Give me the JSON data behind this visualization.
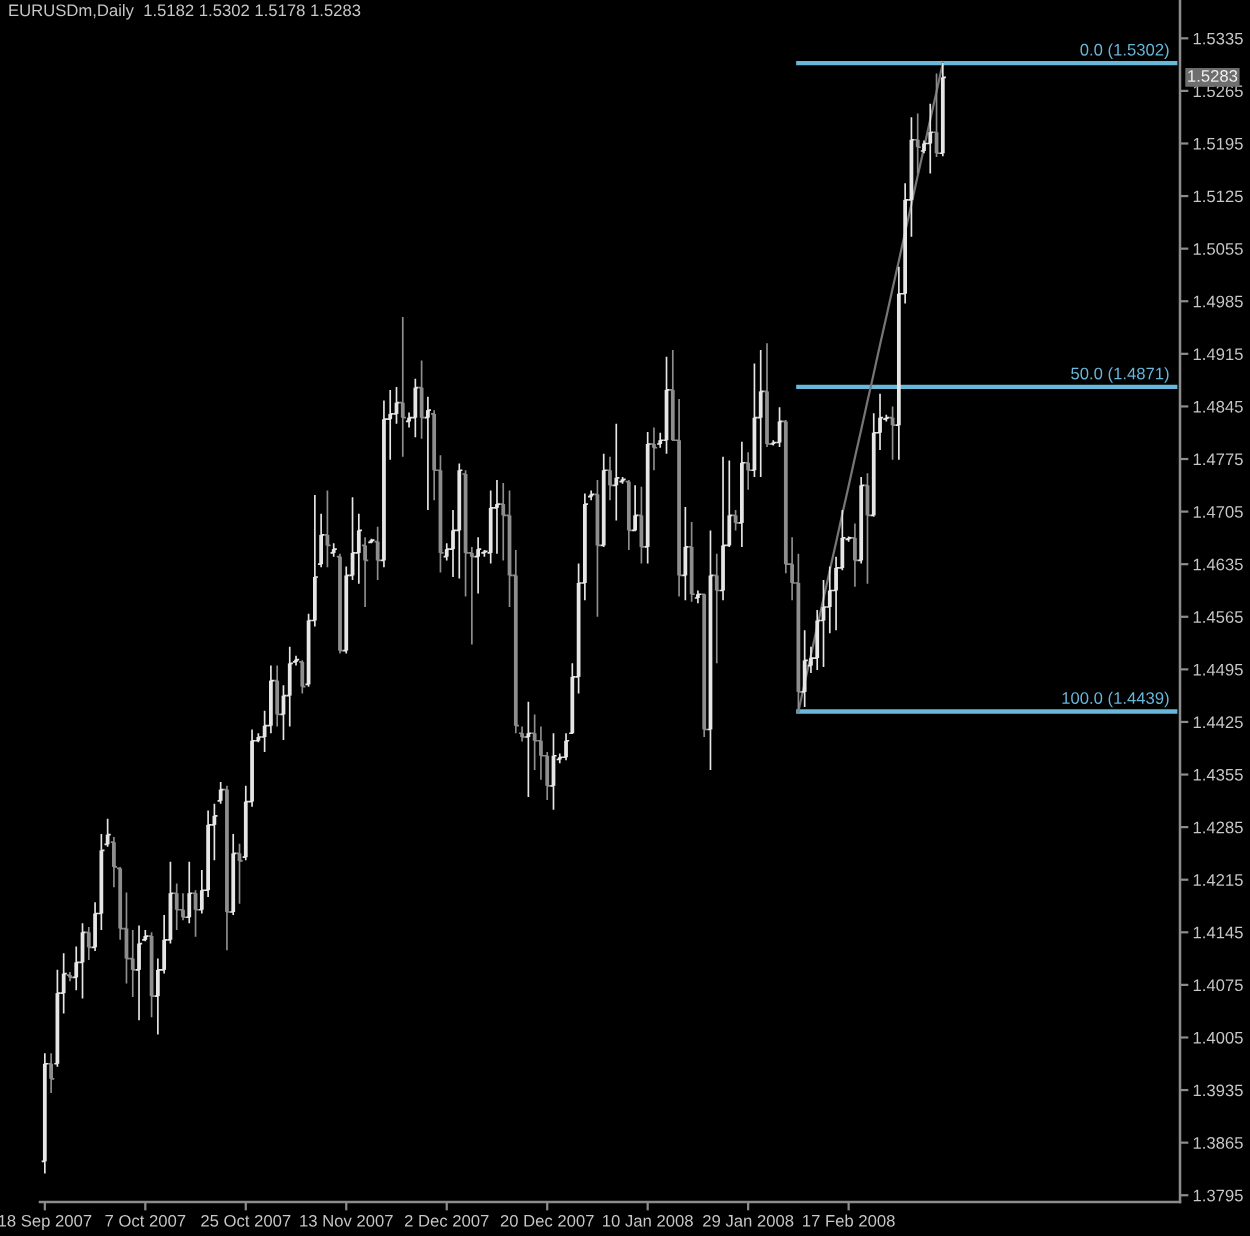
{
  "chart_data": {
    "type": "candlestick",
    "title": "EURUSDm,Daily  1.5182 1.5302 1.5178 1.5283",
    "categories": [
      "18 Sep 2007",
      null,
      null,
      null,
      null,
      null,
      null,
      null,
      null,
      null,
      null,
      null,
      null,
      null,
      null,
      null,
      "7 Oct 2007",
      null,
      null,
      null,
      null,
      null,
      null,
      null,
      null,
      null,
      null,
      null,
      null,
      null,
      null,
      null,
      "25 Oct 2007",
      null,
      null,
      null,
      null,
      null,
      null,
      null,
      null,
      null,
      null,
      null,
      null,
      null,
      null,
      null,
      "13 Nov 2007",
      null,
      null,
      null,
      null,
      null,
      null,
      null,
      null,
      null,
      null,
      null,
      null,
      null,
      null,
      null,
      "2 Dec 2007",
      null,
      null,
      null,
      null,
      null,
      null,
      null,
      null,
      null,
      null,
      null,
      null,
      null,
      null,
      null,
      "20 Dec 2007",
      null,
      null,
      null,
      null,
      null,
      null,
      null,
      null,
      null,
      null,
      null,
      null,
      null,
      null,
      null,
      "10 Jan 2008",
      null,
      null,
      null,
      null,
      null,
      null,
      null,
      null,
      null,
      null,
      null,
      null,
      null,
      null,
      null,
      "29 Jan 2008",
      null,
      null,
      null,
      null,
      null,
      null,
      null,
      null,
      null,
      null,
      null,
      null,
      null,
      null,
      null,
      "17 Feb 2008",
      null,
      null,
      null,
      null,
      null,
      null,
      null,
      null,
      null,
      null,
      null,
      null,
      null,
      null,
      null,
      null,
      null,
      null,
      null,
      null,
      null,
      null,
      null,
      null,
      null,
      null,
      null,
      null,
      null,
      null,
      null,
      null,
      null,
      null,
      null,
      null,
      null,
      null,
      null,
      null,
      null,
      null,
      null,
      null,
      null,
      null,
      null,
      null,
      null,
      null,
      null,
      null
    ],
    "ohlc": [
      [
        1.384,
        1.3984,
        1.3824,
        1.397
      ],
      [
        1.397,
        1.3984,
        1.3931,
        1.395
      ],
      [
        1.397,
        1.4095,
        1.3966,
        1.4064
      ],
      [
        1.4064,
        1.4117,
        1.4037,
        1.409
      ],
      [
        1.4088,
        1.4092,
        1.408,
        1.4085
      ],
      [
        1.4085,
        1.4126,
        1.4068,
        1.4105
      ],
      [
        1.4105,
        1.4157,
        1.4057,
        1.4145
      ],
      [
        1.4145,
        1.4152,
        1.4108,
        1.4125
      ],
      [
        1.4125,
        1.4185,
        1.412,
        1.417
      ],
      [
        1.417,
        1.4276,
        1.4148,
        1.4254
      ],
      [
        1.4262,
        1.4296,
        1.4259,
        1.4275
      ],
      [
        1.4265,
        1.4272,
        1.4205,
        1.4232
      ],
      [
        1.423,
        1.4232,
        1.4135,
        1.415
      ],
      [
        1.415,
        1.4198,
        1.4077,
        1.411
      ],
      [
        1.411,
        1.4148,
        1.4059,
        1.4095
      ],
      [
        1.4095,
        1.4154,
        1.4028,
        1.413
      ],
      [
        1.4135,
        1.4148,
        1.4133,
        1.414
      ],
      [
        1.414,
        1.4145,
        1.4032,
        1.406
      ],
      [
        1.406,
        1.411,
        1.4009,
        1.4095
      ],
      [
        1.4095,
        1.4168,
        1.409,
        1.4135
      ],
      [
        1.4135,
        1.4239,
        1.413,
        1.4197
      ],
      [
        1.4197,
        1.421,
        1.4148,
        1.4175
      ],
      [
        1.4175,
        1.4197,
        1.4161,
        1.4165
      ],
      [
        1.4165,
        1.4239,
        1.4157,
        1.4197
      ],
      [
        1.4197,
        1.4201,
        1.4139,
        1.4175
      ],
      [
        1.4175,
        1.4228,
        1.417,
        1.4201
      ],
      [
        1.4201,
        1.4307,
        1.4192,
        1.4288
      ],
      [
        1.4288,
        1.4316,
        1.4241,
        1.43
      ],
      [
        1.432,
        1.4345,
        1.4316,
        1.4335
      ],
      [
        1.4335,
        1.434,
        1.4121,
        1.4172
      ],
      [
        1.4172,
        1.4276,
        1.4168,
        1.425
      ],
      [
        1.425,
        1.4263,
        1.4183,
        1.424
      ],
      [
        1.4245,
        1.434,
        1.4241,
        1.4319
      ],
      [
        1.4319,
        1.4415,
        1.4312,
        1.44
      ],
      [
        1.44,
        1.441,
        1.4398,
        1.4405
      ],
      [
        1.4405,
        1.444,
        1.4385,
        1.442
      ],
      [
        1.442,
        1.45,
        1.441,
        1.448
      ],
      [
        1.448,
        1.45,
        1.4419,
        1.4435
      ],
      [
        1.4435,
        1.4474,
        1.4401,
        1.446
      ],
      [
        1.446,
        1.4525,
        1.4419,
        1.4503
      ],
      [
        1.4505,
        1.4513,
        1.45,
        1.4508
      ],
      [
        1.4505,
        1.4507,
        1.4463,
        1.4472
      ],
      [
        1.4475,
        1.4569,
        1.4472,
        1.456
      ],
      [
        1.456,
        1.4727,
        1.4552,
        1.4618
      ],
      [
        1.4635,
        1.4702,
        1.4631,
        1.4674
      ],
      [
        1.4674,
        1.4733,
        1.4631,
        1.466
      ],
      [
        1.465,
        1.4663,
        1.4645,
        1.4655
      ],
      [
        1.4645,
        1.4649,
        1.4516,
        1.452
      ],
      [
        1.452,
        1.4632,
        1.4516,
        1.462
      ],
      [
        1.462,
        1.4724,
        1.4614,
        1.465
      ],
      [
        1.465,
        1.4702,
        1.4609,
        1.468
      ],
      [
        1.466,
        1.4671,
        1.4578,
        1.464
      ],
      [
        1.4664,
        1.4669,
        1.4663,
        1.4667
      ],
      [
        1.4665,
        1.4685,
        1.4614,
        1.464
      ],
      [
        1.464,
        1.4853,
        1.4631,
        1.4828
      ],
      [
        1.4828,
        1.4867,
        1.4774,
        1.4835
      ],
      [
        1.4835,
        1.4871,
        1.4822,
        1.485
      ],
      [
        1.485,
        1.4964,
        1.4778,
        1.483
      ],
      [
        1.4825,
        1.4837,
        1.4817,
        1.483
      ],
      [
        1.483,
        1.4882,
        1.4804,
        1.487
      ],
      [
        1.487,
        1.4906,
        1.4802,
        1.483
      ],
      [
        1.483,
        1.4858,
        1.4707,
        1.484
      ],
      [
        1.4835,
        1.484,
        1.472,
        1.476
      ],
      [
        1.476,
        1.478,
        1.4624,
        1.465
      ],
      [
        1.4645,
        1.4663,
        1.464,
        1.4655
      ],
      [
        1.4655,
        1.4707,
        1.4618,
        1.468
      ],
      [
        1.468,
        1.4769,
        1.4616,
        1.476
      ],
      [
        1.4755,
        1.476,
        1.4592,
        1.465
      ],
      [
        1.465,
        1.4658,
        1.4528,
        1.4645
      ],
      [
        1.4645,
        1.4671,
        1.4596,
        1.4655
      ],
      [
        1.465,
        1.4654,
        1.4645,
        1.4652
      ],
      [
        1.465,
        1.4733,
        1.4636,
        1.471
      ],
      [
        1.471,
        1.4747,
        1.4649,
        1.4715
      ],
      [
        1.4715,
        1.4743,
        1.464,
        1.47
      ],
      [
        1.47,
        1.4733,
        1.4578,
        1.462
      ],
      [
        1.462,
        1.4654,
        1.441,
        1.442
      ],
      [
        1.441,
        1.4419,
        1.4399,
        1.4405
      ],
      [
        1.4405,
        1.4452,
        1.4325,
        1.441
      ],
      [
        1.441,
        1.4435,
        1.4361,
        1.44
      ],
      [
        1.44,
        1.4419,
        1.4348,
        1.438
      ],
      [
        1.438,
        1.4385,
        1.4321,
        1.434
      ],
      [
        1.434,
        1.441,
        1.4308,
        1.438
      ],
      [
        1.4375,
        1.4383,
        1.437,
        1.4378
      ],
      [
        1.4378,
        1.441,
        1.4374,
        1.44
      ],
      [
        1.441,
        1.4503,
        1.441,
        1.4485
      ],
      [
        1.4485,
        1.4636,
        1.4463,
        1.461
      ],
      [
        1.461,
        1.4729,
        1.4587,
        1.4715
      ],
      [
        1.4725,
        1.4733,
        1.472,
        1.4728
      ],
      [
        1.4728,
        1.4747,
        1.4565,
        1.466
      ],
      [
        1.466,
        1.4782,
        1.4658,
        1.476
      ],
      [
        1.476,
        1.4778,
        1.472,
        1.474
      ],
      [
        1.474,
        1.4822,
        1.4693,
        1.475
      ],
      [
        1.4745,
        1.4751,
        1.4742,
        1.4748
      ],
      [
        1.4745,
        1.4747,
        1.4654,
        1.468
      ],
      [
        1.468,
        1.474,
        1.468,
        1.47
      ],
      [
        1.47,
        1.4738,
        1.4636,
        1.4658
      ],
      [
        1.4658,
        1.4811,
        1.4636,
        1.4795
      ],
      [
        1.4795,
        1.4817,
        1.476,
        1.479
      ],
      [
        1.4795,
        1.481,
        1.479,
        1.48
      ],
      [
        1.48,
        1.4911,
        1.4782,
        1.4867
      ],
      [
        1.4867,
        1.492,
        1.48,
        1.48
      ],
      [
        1.48,
        1.4855,
        1.4592,
        1.462
      ],
      [
        1.462,
        1.4711,
        1.4587,
        1.4658
      ],
      [
        1.4658,
        1.4691,
        1.4585,
        1.4595
      ],
      [
        1.459,
        1.46,
        1.4583,
        1.4595
      ],
      [
        1.4595,
        1.4596,
        1.4405,
        1.4415
      ],
      [
        1.4415,
        1.468,
        1.4361,
        1.462
      ],
      [
        1.462,
        1.4649,
        1.4503,
        1.46
      ],
      [
        1.46,
        1.4778,
        1.4587,
        1.466
      ],
      [
        1.466,
        1.4773,
        1.4658,
        1.47
      ],
      [
        1.47,
        1.4707,
        1.468,
        1.469
      ],
      [
        1.469,
        1.4798,
        1.4658,
        1.477
      ],
      [
        1.477,
        1.4784,
        1.4734,
        1.476
      ],
      [
        1.476,
        1.4902,
        1.4751,
        1.483
      ],
      [
        1.483,
        1.492,
        1.4751,
        1.4865
      ],
      [
        1.4865,
        1.4929,
        1.4791,
        1.4795
      ],
      [
        1.4795,
        1.48,
        1.4793,
        1.4797
      ],
      [
        1.4797,
        1.4844,
        1.4791,
        1.4825
      ],
      [
        1.4825,
        1.4827,
        1.4623,
        1.4635
      ],
      [
        1.4635,
        1.4671,
        1.4587,
        1.461
      ],
      [
        1.461,
        1.4649,
        1.4439,
        1.4465
      ],
      [
        1.4465,
        1.4547,
        1.4445,
        1.4507
      ],
      [
        1.45,
        1.4525,
        1.449,
        1.451
      ],
      [
        1.451,
        1.4574,
        1.4494,
        1.456
      ],
      [
        1.456,
        1.4614,
        1.4498,
        1.4578
      ],
      [
        1.4578,
        1.4632,
        1.4543,
        1.46
      ],
      [
        1.46,
        1.4645,
        1.4547,
        1.463
      ],
      [
        1.463,
        1.4707,
        1.4627,
        1.467
      ],
      [
        1.4668,
        1.4672,
        1.4665,
        1.467
      ],
      [
        1.467,
        1.4689,
        1.4605,
        1.464
      ],
      [
        1.464,
        1.4751,
        1.4636,
        1.474
      ],
      [
        1.474,
        1.4756,
        1.4609,
        1.47
      ],
      [
        1.47,
        1.4836,
        1.4698,
        1.481
      ],
      [
        1.481,
        1.4862,
        1.4787,
        1.483
      ],
      [
        1.4828,
        1.4834,
        1.4825,
        1.483
      ],
      [
        1.483,
        1.4845,
        1.4774,
        1.482
      ],
      [
        1.482,
        1.5031,
        1.4774,
        1.4995
      ],
      [
        1.4995,
        1.5142,
        1.4982,
        1.512
      ],
      [
        1.512,
        1.523,
        1.5071,
        1.52
      ],
      [
        1.52,
        1.5235,
        1.5155,
        1.519
      ],
      [
        1.5185,
        1.5199,
        1.5182,
        1.5195
      ],
      [
        1.5195,
        1.5248,
        1.5155,
        1.521
      ],
      [
        1.521,
        1.5288,
        1.5177,
        1.5182
      ],
      [
        1.5182,
        1.5302,
        1.5178,
        1.5283
      ],
      null,
      null,
      null,
      null,
      null,
      null,
      null,
      null,
      null,
      null,
      null,
      null,
      null,
      null,
      null,
      null,
      null,
      null,
      null,
      null,
      null,
      null,
      null,
      null,
      null,
      null,
      null,
      null,
      null,
      null,
      null,
      null,
      null,
      null,
      null,
      null,
      null
    ],
    "colors": [
      "#e6e6e6",
      "#8e8e8e",
      "#e6e6e6",
      "#e6e6e6",
      "#8e8e8e",
      "#e6e6e6",
      "#e6e6e6",
      "#8e8e8e",
      "#e6e6e6",
      "#e6e6e6",
      "#e6e6e6",
      "#8e8e8e",
      "#8e8e8e",
      "#8e8e8e",
      "#8e8e8e",
      "#e6e6e6",
      "#e6e6e6",
      "#8e8e8e",
      "#e6e6e6",
      "#e6e6e6",
      "#e6e6e6",
      "#8e8e8e",
      "#8e8e8e",
      "#e6e6e6",
      "#8e8e8e",
      "#e6e6e6",
      "#e6e6e6",
      "#e6e6e6",
      "#e6e6e6",
      "#8e8e8e",
      "#e6e6e6",
      "#8e8e8e",
      "#e6e6e6",
      "#e6e6e6",
      "#e6e6e6",
      "#e6e6e6",
      "#e6e6e6",
      "#8e8e8e",
      "#e6e6e6",
      "#e6e6e6",
      "#e6e6e6",
      "#8e8e8e",
      "#e6e6e6",
      "#e6e6e6",
      "#e6e6e6",
      "#8e8e8e",
      "#e6e6e6",
      "#8e8e8e",
      "#e6e6e6",
      "#e6e6e6",
      "#e6e6e6",
      "#8e8e8e",
      "#e6e6e6",
      "#8e8e8e",
      "#e6e6e6",
      "#e6e6e6",
      "#e6e6e6",
      "#8e8e8e",
      "#e6e6e6",
      "#e6e6e6",
      "#8e8e8e",
      "#e6e6e6",
      "#8e8e8e",
      "#8e8e8e",
      "#e6e6e6",
      "#e6e6e6",
      "#e6e6e6",
      "#8e8e8e",
      "#8e8e8e",
      "#e6e6e6",
      "#e6e6e6",
      "#e6e6e6",
      "#e6e6e6",
      "#8e8e8e",
      "#8e8e8e",
      "#8e8e8e",
      "#8e8e8e",
      "#e6e6e6",
      "#8e8e8e",
      "#8e8e8e",
      "#8e8e8e",
      "#e6e6e6",
      "#e6e6e6",
      "#e6e6e6",
      "#e6e6e6",
      "#e6e6e6",
      "#e6e6e6",
      "#e6e6e6",
      "#8e8e8e",
      "#e6e6e6",
      "#8e8e8e",
      "#e6e6e6",
      "#e6e6e6",
      "#8e8e8e",
      "#e6e6e6",
      "#8e8e8e",
      "#e6e6e6",
      "#8e8e8e",
      "#e6e6e6",
      "#e6e6e6",
      "#8e8e8e",
      "#8e8e8e",
      "#e6e6e6",
      "#8e8e8e",
      "#e6e6e6",
      "#8e8e8e",
      "#e6e6e6",
      "#8e8e8e",
      "#e6e6e6",
      "#e6e6e6",
      "#8e8e8e",
      "#e6e6e6",
      "#8e8e8e",
      "#e6e6e6",
      "#e6e6e6",
      "#8e8e8e",
      "#e6e6e6",
      "#e6e6e6",
      "#8e8e8e",
      "#8e8e8e",
      "#8e8e8e",
      "#e6e6e6",
      "#e6e6e6",
      "#e6e6e6",
      "#e6e6e6",
      "#e6e6e6",
      "#e6e6e6",
      "#e6e6e6",
      "#e6e6e6",
      "#8e8e8e",
      "#e6e6e6",
      "#8e8e8e",
      "#e6e6e6",
      "#e6e6e6",
      "#e6e6e6",
      "#8e8e8e",
      "#e6e6e6",
      "#e6e6e6",
      "#e6e6e6",
      "#8e8e8e",
      "#e6e6e6",
      "#e6e6e6",
      "#8e8e8e",
      "#e6e6e6",
      null,
      null,
      null,
      null,
      null,
      null,
      null,
      null,
      null,
      null,
      null,
      null,
      null,
      null,
      null,
      null,
      null,
      null,
      null,
      null,
      null,
      null,
      null,
      null,
      null,
      null,
      null,
      null,
      null,
      null,
      null,
      null,
      null,
      null,
      null,
      null,
      null
    ],
    "series": [
      {
        "type": "line",
        "name": "0.0 (1.5302)",
        "color": "#68b8dc",
        "values": [
          null,
          null,
          null,
          null,
          null,
          null,
          null,
          null,
          null,
          null,
          null,
          null,
          null,
          null,
          null,
          null,
          null,
          null,
          null,
          null,
          null,
          null,
          null,
          null,
          null,
          null,
          null,
          null,
          null,
          null,
          null,
          null,
          null,
          null,
          null,
          null,
          null,
          null,
          null,
          null,
          null,
          null,
          null,
          null,
          null,
          null,
          null,
          null,
          null,
          null,
          null,
          null,
          null,
          null,
          null,
          null,
          null,
          null,
          null,
          null,
          null,
          null,
          null,
          null,
          null,
          null,
          null,
          null,
          null,
          null,
          null,
          null,
          null,
          null,
          null,
          null,
          null,
          null,
          null,
          null,
          null,
          null,
          null,
          null,
          null,
          null,
          null,
          null,
          null,
          null,
          null,
          null,
          null,
          null,
          null,
          null,
          null,
          null,
          null,
          null,
          null,
          null,
          null,
          null,
          null,
          null,
          null,
          null,
          null,
          null,
          null,
          null,
          null,
          null,
          null,
          null,
          null,
          null,
          null,
          null,
          1.5302,
          1.5302,
          1.5302,
          1.5302,
          1.5302,
          1.5302,
          1.5302,
          1.5302,
          1.5302,
          1.5302,
          1.5302,
          1.5302,
          1.5302,
          1.5302,
          1.5302,
          1.5302,
          1.5302,
          1.5302,
          1.5302,
          1.5302,
          1.5302,
          1.5302,
          1.5302,
          1.5302,
          1.5302,
          1.5302,
          1.5302,
          1.5302,
          1.5302,
          1.5302,
          1.5302,
          1.5302,
          1.5302,
          1.5302,
          1.5302,
          1.5302,
          1.5302,
          1.5302,
          1.5302,
          1.5302,
          1.5302,
          1.5302,
          1.5302,
          1.5302,
          1.5302,
          1.5302,
          1.5302,
          1.5302,
          1.5302,
          1.5302,
          1.5302,
          1.5302,
          1.5302,
          1.5302,
          1.5302,
          1.5302,
          1.5302,
          1.5302,
          1.5302,
          1.5302,
          1.5302
        ]
      },
      {
        "type": "line",
        "name": "50.0 (1.4871)",
        "color": "#68b8dc",
        "values": [
          null,
          null,
          null,
          null,
          null,
          null,
          null,
          null,
          null,
          null,
          null,
          null,
          null,
          null,
          null,
          null,
          null,
          null,
          null,
          null,
          null,
          null,
          null,
          null,
          null,
          null,
          null,
          null,
          null,
          null,
          null,
          null,
          null,
          null,
          null,
          null,
          null,
          null,
          null,
          null,
          null,
          null,
          null,
          null,
          null,
          null,
          null,
          null,
          null,
          null,
          null,
          null,
          null,
          null,
          null,
          null,
          null,
          null,
          null,
          null,
          null,
          null,
          null,
          null,
          null,
          null,
          null,
          null,
          null,
          null,
          null,
          null,
          null,
          null,
          null,
          null,
          null,
          null,
          null,
          null,
          null,
          null,
          null,
          null,
          null,
          null,
          null,
          null,
          null,
          null,
          null,
          null,
          null,
          null,
          null,
          null,
          null,
          null,
          null,
          null,
          null,
          null,
          null,
          null,
          null,
          null,
          null,
          null,
          null,
          null,
          null,
          null,
          null,
          null,
          null,
          null,
          null,
          null,
          null,
          null,
          1.4871,
          1.4871,
          1.4871,
          1.4871,
          1.4871,
          1.4871,
          1.4871,
          1.4871,
          1.4871,
          1.4871,
          1.4871,
          1.4871,
          1.4871,
          1.4871,
          1.4871,
          1.4871,
          1.4871,
          1.4871,
          1.4871,
          1.4871,
          1.4871,
          1.4871,
          1.4871,
          1.4871,
          1.4871,
          1.4871,
          1.4871,
          1.4871,
          1.4871,
          1.4871,
          1.4871,
          1.4871,
          1.4871,
          1.4871,
          1.4871,
          1.4871,
          1.4871,
          1.4871,
          1.4871,
          1.4871,
          1.4871,
          1.4871,
          1.4871,
          1.4871,
          1.4871,
          1.4871,
          1.4871,
          1.4871,
          1.4871,
          1.4871,
          1.4871,
          1.4871,
          1.4871,
          1.4871,
          1.4871,
          1.4871,
          1.4871,
          1.4871,
          1.4871,
          1.4871,
          1.4871
        ]
      },
      {
        "type": "line",
        "name": "100.0 (1.4439)",
        "color": "#68b8dc",
        "values": [
          null,
          null,
          null,
          null,
          null,
          null,
          null,
          null,
          null,
          null,
          null,
          null,
          null,
          null,
          null,
          null,
          null,
          null,
          null,
          null,
          null,
          null,
          null,
          null,
          null,
          null,
          null,
          null,
          null,
          null,
          null,
          null,
          null,
          null,
          null,
          null,
          null,
          null,
          null,
          null,
          null,
          null,
          null,
          null,
          null,
          null,
          null,
          null,
          null,
          null,
          null,
          null,
          null,
          null,
          null,
          null,
          null,
          null,
          null,
          null,
          null,
          null,
          null,
          null,
          null,
          null,
          null,
          null,
          null,
          null,
          null,
          null,
          null,
          null,
          null,
          null,
          null,
          null,
          null,
          null,
          null,
          null,
          null,
          null,
          null,
          null,
          null,
          null,
          null,
          null,
          null,
          null,
          null,
          null,
          null,
          null,
          null,
          null,
          null,
          null,
          null,
          null,
          null,
          null,
          null,
          null,
          null,
          null,
          null,
          null,
          null,
          null,
          null,
          null,
          null,
          null,
          null,
          null,
          null,
          null,
          1.4439,
          1.4439,
          1.4439,
          1.4439,
          1.4439,
          1.4439,
          1.4439,
          1.4439,
          1.4439,
          1.4439,
          1.4439,
          1.4439,
          1.4439,
          1.4439,
          1.4439,
          1.4439,
          1.4439,
          1.4439,
          1.4439,
          1.4439,
          1.4439,
          1.4439,
          1.4439,
          1.4439,
          1.4439,
          1.4439,
          1.4439,
          1.4439,
          1.4439,
          1.4439,
          1.4439,
          1.4439,
          1.4439,
          1.4439,
          1.4439,
          1.4439,
          1.4439,
          1.4439,
          1.4439,
          1.4439,
          1.4439,
          1.4439,
          1.4439,
          1.4439,
          1.4439,
          1.4439,
          1.4439,
          1.4439,
          1.4439,
          1.4439,
          1.4439,
          1.4439,
          1.4439,
          1.4439,
          1.4439,
          1.4439,
          1.4439,
          1.4439,
          1.4439,
          1.4439,
          1.4439
        ]
      },
      {
        "type": "line",
        "color": "#767676",
        "values": [
          null,
          null,
          null,
          null,
          null,
          null,
          null,
          null,
          null,
          null,
          null,
          null,
          null,
          null,
          null,
          null,
          null,
          null,
          null,
          null,
          null,
          null,
          null,
          null,
          null,
          null,
          null,
          null,
          null,
          null,
          null,
          null,
          null,
          null,
          null,
          null,
          null,
          null,
          null,
          null,
          null,
          null,
          null,
          null,
          null,
          null,
          null,
          null,
          null,
          null,
          null,
          null,
          null,
          null,
          null,
          null,
          null,
          null,
          null,
          null,
          null,
          null,
          null,
          null,
          null,
          null,
          null,
          null,
          null,
          null,
          null,
          null,
          null,
          null,
          null,
          null,
          null,
          null,
          null,
          null,
          null,
          null,
          null,
          null,
          null,
          null,
          null,
          null,
          null,
          null,
          null,
          null,
          null,
          null,
          null,
          null,
          null,
          null,
          null,
          null,
          null,
          null,
          null,
          null,
          null,
          null,
          null,
          null,
          null,
          null,
          null,
          null,
          null,
          null,
          null,
          null,
          null,
          null,
          null,
          null,
          1.4439,
          1.4477,
          1.4514,
          1.4552,
          1.4589,
          1.4627,
          1.4664,
          1.4702,
          1.4739,
          1.4777,
          1.4814,
          1.4852,
          1.4889,
          1.4927,
          1.4964,
          1.5002,
          1.5039,
          1.5077,
          1.5114,
          1.5152,
          1.5189,
          1.5227,
          1.5264,
          1.5302,
          null,
          null,
          null,
          null,
          null,
          null,
          null,
          null,
          null,
          null,
          null,
          null,
          null,
          null,
          null,
          null,
          null,
          null,
          null,
          null,
          null,
          null,
          null,
          null,
          null,
          null,
          null,
          null,
          null,
          null,
          null,
          null,
          null,
          null,
          null,
          null,
          null
        ]
      }
    ],
    "ylim": [
      1.3786,
      1.5386
    ],
    "yticks": [
      1.3795,
      1.3865,
      1.3935,
      1.4005,
      1.4075,
      1.4145,
      1.4215,
      1.4285,
      1.4355,
      1.4425,
      1.4495,
      1.4565,
      1.4635,
      1.4705,
      1.4775,
      1.4845,
      1.4915,
      1.4985,
      1.5055,
      1.5125,
      1.5195,
      1.5265,
      1.5335
    ],
    "annotations": [
      {
        "text": "1.5283",
        "y": 1.5283
      }
    ]
  }
}
